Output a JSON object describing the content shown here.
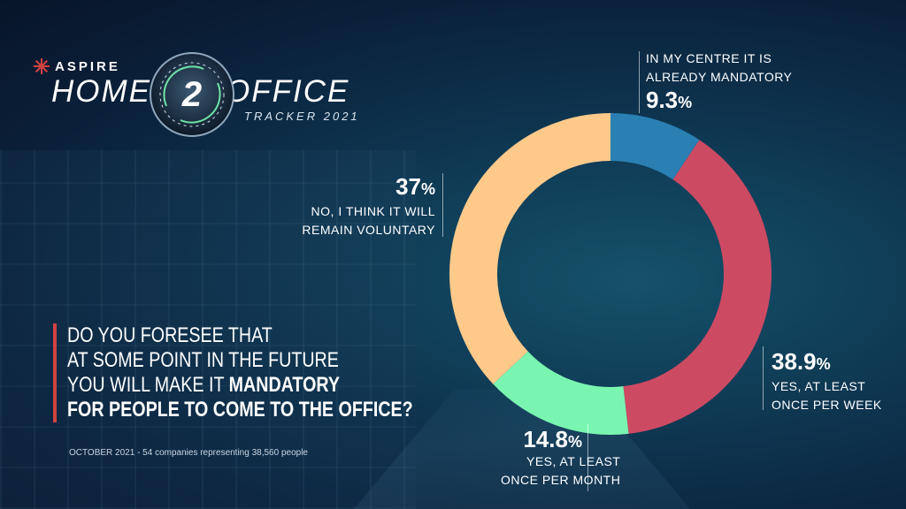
{
  "logo": {
    "brand": "ASPIRE",
    "title_left": "HOME",
    "title_num": "2",
    "title_right": "OFFICE",
    "subtitle": "TRACKER 2021"
  },
  "question": {
    "line1": "DO YOU FORESEE THAT",
    "line2": "AT SOME POINT IN THE FUTURE",
    "line3_pre": "YOU WILL MAKE IT ",
    "line3_bold": "MANDATORY",
    "line4": "FOR PEOPLE TO COME TO THE OFFICE?"
  },
  "footnote": "OCTOBER 2021 - 54 companies representing 38,560 people",
  "colors": {
    "accent": "#d1433f",
    "slice_blue": "#2a7fb3",
    "slice_red": "#cd4a63",
    "slice_green": "#7af5b1",
    "slice_orange": "#ffc98a"
  },
  "chart_data": {
    "type": "pie",
    "donut": true,
    "categories": [
      "IN MY CENTRE IT IS ALREADY MANDATORY",
      "YES, AT LEAST ONCE PER WEEK",
      "YES, AT LEAST ONCE PER MONTH",
      "NO, I THINK IT WILL REMAIN VOLUNTARY"
    ],
    "values": [
      9.3,
      38.9,
      14.8,
      37
    ],
    "labels": [
      {
        "pct": "9.3",
        "unit": "%",
        "line1": "IN MY CENTRE IT IS",
        "line2": "ALREADY MANDATORY"
      },
      {
        "pct": "38.9",
        "unit": "%",
        "line1": "YES, AT LEAST",
        "line2": "ONCE PER WEEK"
      },
      {
        "pct": "14.8",
        "unit": "%",
        "line1": "YES, AT LEAST",
        "line2": "ONCE PER MONTH"
      },
      {
        "pct": "37",
        "unit": "%",
        "line1": "NO, I THINK IT WILL",
        "line2": "REMAIN VOLUNTARY"
      }
    ],
    "start_angle_deg": 0,
    "direction": "clockwise"
  }
}
